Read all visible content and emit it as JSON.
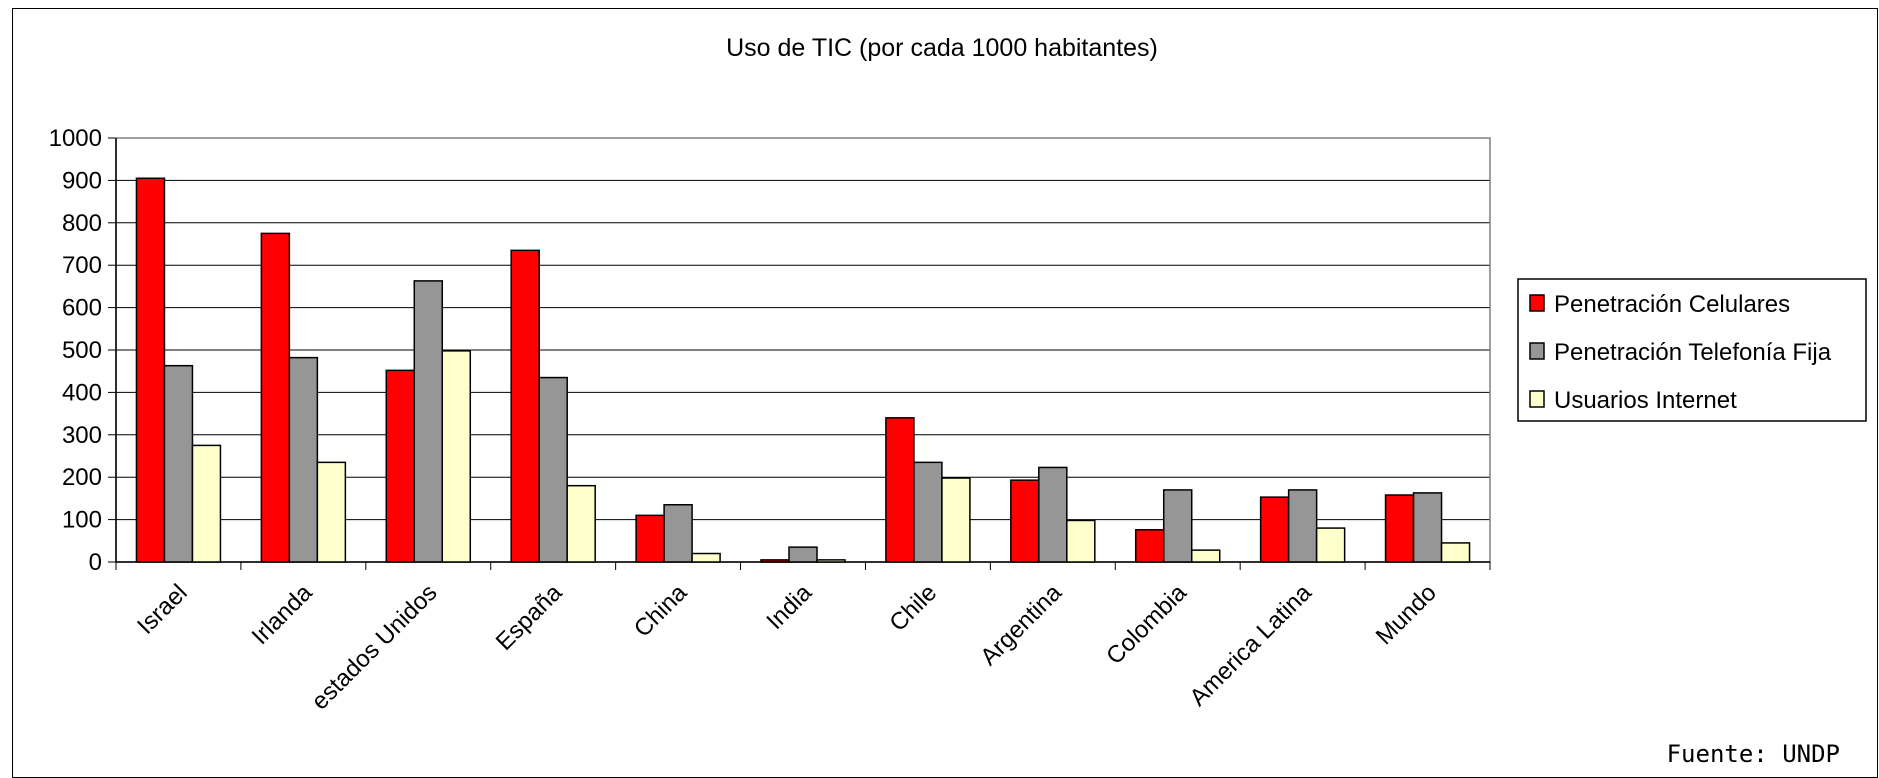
{
  "chart_data": {
    "type": "bar",
    "title": "Uso de TIC (por cada 1000 habitantes)",
    "categories": [
      "Israel",
      "Irlanda",
      "estados Unidos",
      "España",
      "China",
      "India",
      "Chile",
      "Argentina",
      "Colombia",
      "America Latina",
      "Mundo"
    ],
    "series": [
      {
        "name": "Penetración Celulares",
        "color": "#ff0000",
        "values": [
          905,
          775,
          452,
          735,
          110,
          5,
          340,
          193,
          76,
          153,
          158
        ]
      },
      {
        "name": "Penetración Telefonía Fija",
        "color": "#969696",
        "values": [
          463,
          482,
          663,
          435,
          135,
          35,
          235,
          223,
          170,
          170,
          163
        ]
      },
      {
        "name": "Usuarios Internet",
        "color": "#ffffcc",
        "values": [
          275,
          235,
          498,
          180,
          20,
          5,
          198,
          98,
          28,
          80,
          45
        ]
      }
    ],
    "ylim": [
      0,
      1000
    ],
    "yticks": [
      "0",
      "100",
      "200",
      "300",
      "400",
      "500",
      "600",
      "700",
      "800",
      "900",
      "1000"
    ],
    "grid": true,
    "legend_position": "right",
    "xlabel": "",
    "ylabel": ""
  },
  "source": "Fuente: UNDP"
}
